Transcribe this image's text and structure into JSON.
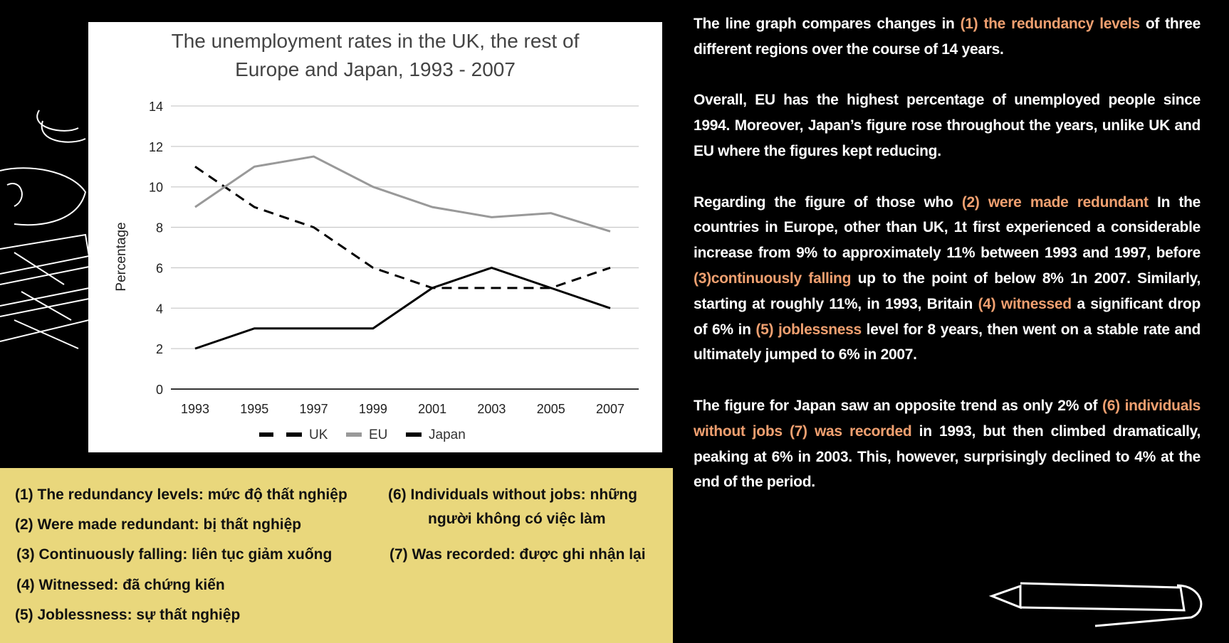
{
  "chart_data": {
    "type": "line",
    "title_lines": [
      "The unemployment rates in the UK, the rest of",
      "Europe and Japan, 1993 - 2007"
    ],
    "xlabel": "",
    "ylabel": "Percentage",
    "categories": [
      "1993",
      "1995",
      "1997",
      "1999",
      "2001",
      "2003",
      "2005",
      "2007"
    ],
    "ylim": [
      0,
      14
    ],
    "yticks": [
      "0",
      "2",
      "4",
      "6",
      "8",
      "10",
      "12",
      "14"
    ],
    "grid": true,
    "legend_position": "bottom",
    "series": [
      {
        "name": "UK",
        "values": [
          11,
          9,
          8,
          6,
          5,
          5,
          5,
          6
        ],
        "color": "#000000",
        "style": "dashed"
      },
      {
        "name": "EU",
        "values": [
          9,
          11,
          11.5,
          10,
          9,
          8.5,
          8.7,
          7.8
        ],
        "color": "#999999",
        "style": "solid"
      },
      {
        "name": "Japan",
        "values": [
          2,
          3,
          3,
          3,
          5,
          6,
          5,
          4
        ],
        "color": "#000000",
        "style": "solid"
      }
    ]
  },
  "vocabulary": [
    "(1) The redundancy levels: mức độ thất nghiệp",
    "(2) Were made redundant: bị thất nghiệp",
    "(3) Continuously falling: liên tục giảm xuống",
    "(4) Witnessed: đã chứng kiến",
    "(5) Joblessness: sự thất nghiệp",
    "(6) Individuals without jobs: những",
    "người không có việc làm",
    "(7) Was recorded: được ghi nhận lại"
  ],
  "colors": {
    "highlight": "#f0a070",
    "vocab_background": "#e9d77c",
    "background": "#000000"
  },
  "essay": [
    [
      {
        "text": "The line graph compares changes in ",
        "hl": false
      },
      {
        "text": "(1) the redundancy levels",
        "hl": true
      },
      {
        "text": " of three different regions over the course of 14 years.",
        "hl": false
      }
    ],
    [
      {
        "text": "Overall, EU has the highest percentage of unemployed people since 1994. Moreover, Japan’s figure rose throughout the years, unlike UK and EU where the figures kept reducing.",
        "hl": false
      }
    ],
    [
      {
        "text": "Regarding the figure of those who ",
        "hl": false
      },
      {
        "text": "(2) were made redundant",
        "hl": true
      },
      {
        "text": " In the countries in Europe, other than UK, 1t first experienced a considerable increase from 9% to approximately 11% between 1993 and 1997, before ",
        "hl": false
      },
      {
        "text": "(3)continuously falling",
        "hl": true
      },
      {
        "text": " up to the point of below 8% 1n 2007. Similarly, starting at roughly 11%, in 1993, Britain ",
        "hl": false
      },
      {
        "text": "(4) witnessed",
        "hl": true
      },
      {
        "text": " a significant drop of 6% in ",
        "hl": false
      },
      {
        "text": "(5) joblessness",
        "hl": true
      },
      {
        "text": " level for 8 years, then went on a stable rate and ultimately jumped to 6% in 2007.",
        "hl": false
      }
    ],
    [
      {
        "text": "The figure for Japan saw an opposite trend as only 2% of ",
        "hl": false
      },
      {
        "text": "(6) individuals without jobs (7) was recorded",
        "hl": true
      },
      {
        "text": " in 1993, but then climbed dramatically, peaking at 6% in 2003. This, however, surprisingly declined to 4% at the end of the period.",
        "hl": false
      }
    ]
  ]
}
